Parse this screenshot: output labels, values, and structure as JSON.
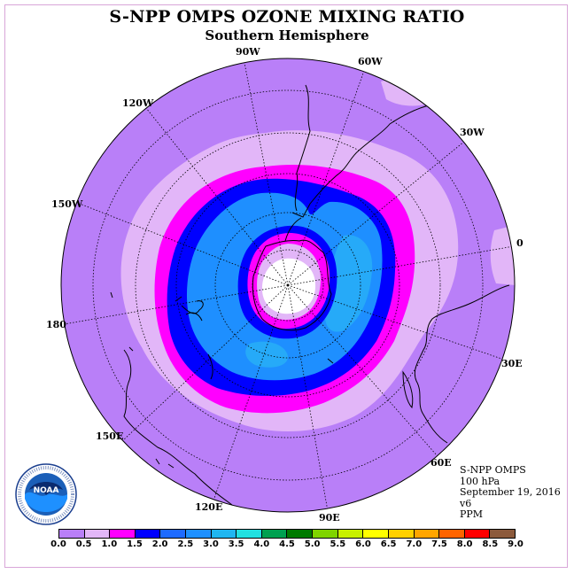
{
  "title": "S-NPP OMPS OZONE MIXING RATIO",
  "subtitle": "Southern Hemisphere",
  "longitude_labels": [
    {
      "text": "90W"
    },
    {
      "text": "60W"
    },
    {
      "text": "30W"
    },
    {
      "text": "0"
    },
    {
      "text": "30E"
    },
    {
      "text": "60E"
    },
    {
      "text": "90E"
    },
    {
      "text": "120E"
    },
    {
      "text": "150E"
    },
    {
      "text": "180"
    },
    {
      "text": "150W"
    },
    {
      "text": "120W"
    }
  ],
  "info": {
    "instrument": "S-NPP OMPS",
    "level": "100 hPa",
    "date": "September 19, 2016",
    "version": "v6",
    "units": "PPM"
  },
  "logo_icon": "noaa-logo",
  "colorbar": {
    "ticks": [
      "0.0",
      "0.5",
      "1.0",
      "1.5",
      "2.0",
      "2.5",
      "3.0",
      "3.5",
      "4.0",
      "4.5",
      "5.0",
      "5.5",
      "6.0",
      "6.5",
      "7.0",
      "7.5",
      "8.0",
      "8.5",
      "9.0"
    ],
    "colors": [
      "#b97ff8",
      "#e2b6f8",
      "#ff00ff",
      "#0000ff",
      "#1e6bff",
      "#1e90ff",
      "#20b6f0",
      "#22e0e0",
      "#00a050",
      "#007a00",
      "#7fd400",
      "#c8f000",
      "#ffff00",
      "#ffd000",
      "#ffa500",
      "#ff6400",
      "#ff0000",
      "#8c5a3c"
    ]
  },
  "map_colors": {
    "ocean_base": "#b97ff8",
    "band_light": "#e2b6f8",
    "band_magenta": "#ff00ff",
    "band_blue": "#0000ff",
    "band_azure": "#1e8fff",
    "band_sky": "#26aaf8",
    "pole": "#ffffff"
  }
}
